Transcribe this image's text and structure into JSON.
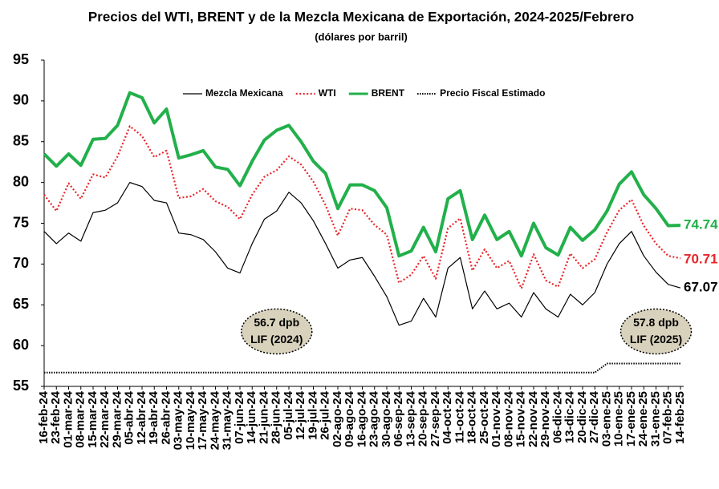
{
  "chart_data": {
    "type": "line",
    "title": "Precios del WTI, BRENT  y de la Mezcla Mexicana de Exportación, 2024-2025/Febrero",
    "subtitle": "(dólares por barril)",
    "categories": [
      "16-feb-24",
      "23-feb-24",
      "01-mar-24",
      "08-mar-24",
      "15-mar-24",
      "22-mar-24",
      "29-mar-24",
      "05-abr-24",
      "12-abr-24",
      "19-abr-24",
      "26-abr-24",
      "03-may-24",
      "10-may-24",
      "17-may-24",
      "24-may-24",
      "31-may-24",
      "07-jun-24",
      "14-jun-24",
      "21-jun-24",
      "28-jun-24",
      "05-jul-24",
      "12-jul-24",
      "19-jul-24",
      "26-jul-24",
      "02-ago-24",
      "09-ago-24",
      "16-ago-24",
      "23-ago-24",
      "30-ago-24",
      "06-sep-24",
      "13-sep-24",
      "20-sep-24",
      "27-sep-24",
      "04-oct-24",
      "11-oct-24",
      "18-oct-24",
      "25-oct-24",
      "01-nov-24",
      "08-nov-24",
      "15-nov-24",
      "22-nov-24",
      "29-nov-24",
      "06-dic-24",
      "13-dic-24",
      "20-dic-24",
      "27-dic-24",
      "03-ene-25",
      "10-ene-25",
      "17-ene-25",
      "24-ene-25",
      "31-ene-25",
      "07-feb-25",
      "14-feb-25"
    ],
    "series": [
      {
        "name": "Mezcla Mexicana",
        "color": "#000000",
        "style": "solid",
        "values": [
          74,
          72.5,
          73.8,
          72.8,
          76.3,
          76.6,
          77.5,
          80,
          79.5,
          77.8,
          77.5,
          73.8,
          73.6,
          73,
          71.5,
          69.5,
          68.9,
          72.5,
          75.5,
          76.5,
          78.8,
          77.5,
          75.3,
          72.5,
          69.5,
          70.5,
          70.8,
          68.5,
          66,
          62.5,
          63,
          65.8,
          63.5,
          69.5,
          70.8,
          64.5,
          66.7,
          64.5,
          65.2,
          63.5,
          66.5,
          64.5,
          63.5,
          66.3,
          65,
          66.5,
          70,
          72.5,
          74,
          71,
          69,
          67.5,
          67.07
        ]
      },
      {
        "name": "WTI",
        "color": "#e8262a",
        "style": "dotted",
        "values": [
          78.5,
          76.5,
          79.9,
          78,
          81,
          80.6,
          83.2,
          86.9,
          85.7,
          83.1,
          83.9,
          78.1,
          78.3,
          79.2,
          77.7,
          77,
          75.5,
          78.5,
          80.7,
          81.5,
          83.2,
          82.2,
          80.1,
          77.2,
          73.5,
          76.8,
          76.6,
          74.8,
          73.6,
          67.7,
          68.7,
          71,
          68.2,
          74.4,
          75.6,
          69.2,
          71.8,
          69.5,
          70.4,
          67,
          71.2,
          68,
          67.2,
          71.3,
          69.5,
          70.6,
          73.9,
          76.6,
          77.9,
          74.7,
          72.5,
          71,
          70.71
        ]
      },
      {
        "name": "BRENT",
        "color": "#22b04b",
        "style": "thick",
        "values": [
          83.5,
          82,
          83.5,
          82.1,
          85.3,
          85.4,
          87,
          91,
          90.4,
          87.3,
          89,
          83,
          83.4,
          83.9,
          81.9,
          81.6,
          79.6,
          82.6,
          85.2,
          86.4,
          87,
          85,
          82.6,
          81.1,
          76.8,
          79.7,
          79.7,
          79,
          76.9,
          71,
          71.6,
          74.5,
          71.5,
          78,
          79,
          73,
          76,
          73,
          74,
          71,
          75,
          72,
          71.1,
          74.5,
          72.9,
          74.2,
          76.5,
          79.8,
          81.3,
          78.5,
          76.8,
          74.7,
          74.74
        ]
      },
      {
        "name": "Precio Fiscal Estimado",
        "color": "#000000",
        "style": "fine-dotted",
        "values": [
          56.7,
          56.7,
          56.7,
          56.7,
          56.7,
          56.7,
          56.7,
          56.7,
          56.7,
          56.7,
          56.7,
          56.7,
          56.7,
          56.7,
          56.7,
          56.7,
          56.7,
          56.7,
          56.7,
          56.7,
          56.7,
          56.7,
          56.7,
          56.7,
          56.7,
          56.7,
          56.7,
          56.7,
          56.7,
          56.7,
          56.7,
          56.7,
          56.7,
          56.7,
          56.7,
          56.7,
          56.7,
          56.7,
          56.7,
          56.7,
          56.7,
          56.7,
          56.7,
          56.7,
          56.7,
          56.7,
          57.8,
          57.8,
          57.8,
          57.8,
          57.8,
          57.8,
          57.8
        ]
      }
    ],
    "end_labels": [
      2,
      1,
      0
    ],
    "annotations": [
      {
        "lines": [
          "56.7 dpb",
          "LIF (2024)"
        ],
        "category": 19,
        "y": 58
      },
      {
        "lines": [
          "57.8 dpb",
          "LIF (2025)"
        ],
        "category": 50,
        "y": 58
      }
    ],
    "ylim": [
      55,
      95
    ],
    "yticks": [
      55,
      60,
      65,
      70,
      75,
      80,
      85,
      90,
      95
    ],
    "grid": false,
    "legend": "top"
  }
}
